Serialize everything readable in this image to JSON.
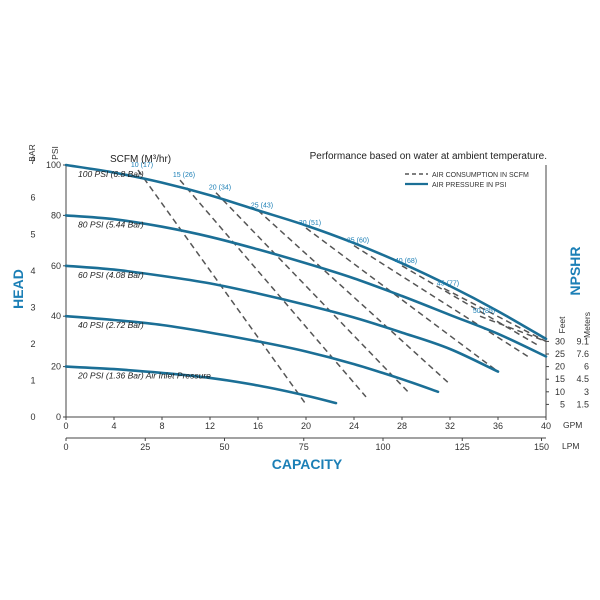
{
  "chart_data": {
    "type": "line",
    "title": "Performance based on water at ambient temperature.",
    "xlabel": "CAPACITY",
    "ylabel": "HEAD",
    "y2label": "NPSHR",
    "x_unit_gpm": "GPM",
    "x_unit_lpm": "LPM",
    "y_unit_psi": "PSI",
    "y_unit_bar": "BAR",
    "npshr_feet_label": "Feet",
    "npshr_meters_label": "Meters",
    "scfm_header": "SCFM (M³/hr)",
    "xlim_gpm": [
      0,
      40
    ],
    "ylim_psi": [
      0,
      100
    ],
    "gpm_ticks": [
      "0",
      "4",
      "8",
      "12",
      "16",
      "20",
      "24",
      "28",
      "32",
      "36",
      "40"
    ],
    "lpm_ticks": [
      "0",
      "25",
      "50",
      "75",
      "100",
      "125",
      "150"
    ],
    "lpm_tick_values": [
      0,
      25,
      50,
      75,
      100,
      125,
      150
    ],
    "psi_ticks": [
      "0",
      "20",
      "40",
      "60",
      "80",
      "100"
    ],
    "bar_ticks": [
      "0",
      "1",
      "2",
      "3",
      "4",
      "5",
      "6",
      "7"
    ],
    "npshr_feet": [
      "30",
      "25",
      "20",
      "15",
      "10",
      "5"
    ],
    "npshr_meters": [
      "9.1",
      "7.6",
      "6",
      "4.5",
      "3",
      "1.5"
    ],
    "npshr_psi_positions": [
      30,
      25,
      20,
      15,
      10,
      5
    ],
    "legend": [
      {
        "label": "AIR CONSUMPTION IN SCFM",
        "style": "dashed"
      },
      {
        "label": "AIR PRESSURE IN PSI",
        "style": "solid"
      }
    ],
    "pressure_curves": [
      {
        "name": "100 PSI (6.8 Bar)",
        "x": [
          0,
          4,
          8,
          12,
          16,
          20,
          24,
          28,
          32,
          36,
          40
        ],
        "y": [
          100,
          97,
          93,
          88,
          82,
          76,
          69,
          61,
          52,
          42,
          31
        ]
      },
      {
        "name": "80 PSI (5.44 Bar)",
        "x": [
          0,
          4,
          8,
          12,
          16,
          20,
          24,
          28,
          32,
          36,
          40
        ],
        "y": [
          80,
          78.5,
          75.5,
          71.5,
          66.5,
          61,
          55,
          48,
          40.5,
          33,
          24
        ]
      },
      {
        "name": "60 PSI (4.08 Bar)",
        "x": [
          0,
          4,
          8,
          12,
          16,
          20,
          24,
          28,
          32,
          36
        ],
        "y": [
          60,
          58.5,
          56,
          53,
          49,
          44.5,
          39.5,
          33.5,
          27,
          18
        ]
      },
      {
        "name": "40 PSI (2.72 Bar)",
        "x": [
          0,
          4,
          8,
          12,
          16,
          20,
          24,
          28,
          31
        ],
        "y": [
          40,
          38.5,
          36.5,
          33.5,
          30,
          26,
          21,
          15,
          10
        ]
      },
      {
        "name": "20 PSI (1.36 Bar) Air Inlet Pressure",
        "x": [
          0,
          4,
          8,
          12,
          16,
          20,
          22.5
        ],
        "y": [
          20,
          19,
          17.5,
          15.5,
          12.5,
          8.5,
          5.5
        ]
      }
    ],
    "air_consumption_lines": [
      {
        "label": "10 (17)",
        "x": [
          6,
          20
        ],
        "y": [
          98,
          5
        ]
      },
      {
        "label": "15 (26)",
        "x": [
          9.5,
          25
        ],
        "y": [
          94,
          8
        ]
      },
      {
        "label": "20 (34)",
        "x": [
          12.5,
          28.5
        ],
        "y": [
          89,
          10
        ]
      },
      {
        "label": "25 (43)",
        "x": [
          16,
          32
        ],
        "y": [
          82,
          13
        ]
      },
      {
        "label": "30 (51)",
        "x": [
          20,
          36
        ],
        "y": [
          75,
          18
        ]
      },
      {
        "label": "35 (60)",
        "x": [
          24,
          38.5
        ],
        "y": [
          68,
          24
        ]
      },
      {
        "label": "40 (68)",
        "x": [
          28,
          39.5
        ],
        "y": [
          60,
          28
        ]
      },
      {
        "label": "45 (77)",
        "x": [
          31.5,
          40
        ],
        "y": [
          51,
          30
        ]
      },
      {
        "label": "50 (85)",
        "x": [
          34.5,
          40
        ],
        "y": [
          40,
          30
        ]
      }
    ],
    "grid": false,
    "legend_position": "top-right"
  }
}
